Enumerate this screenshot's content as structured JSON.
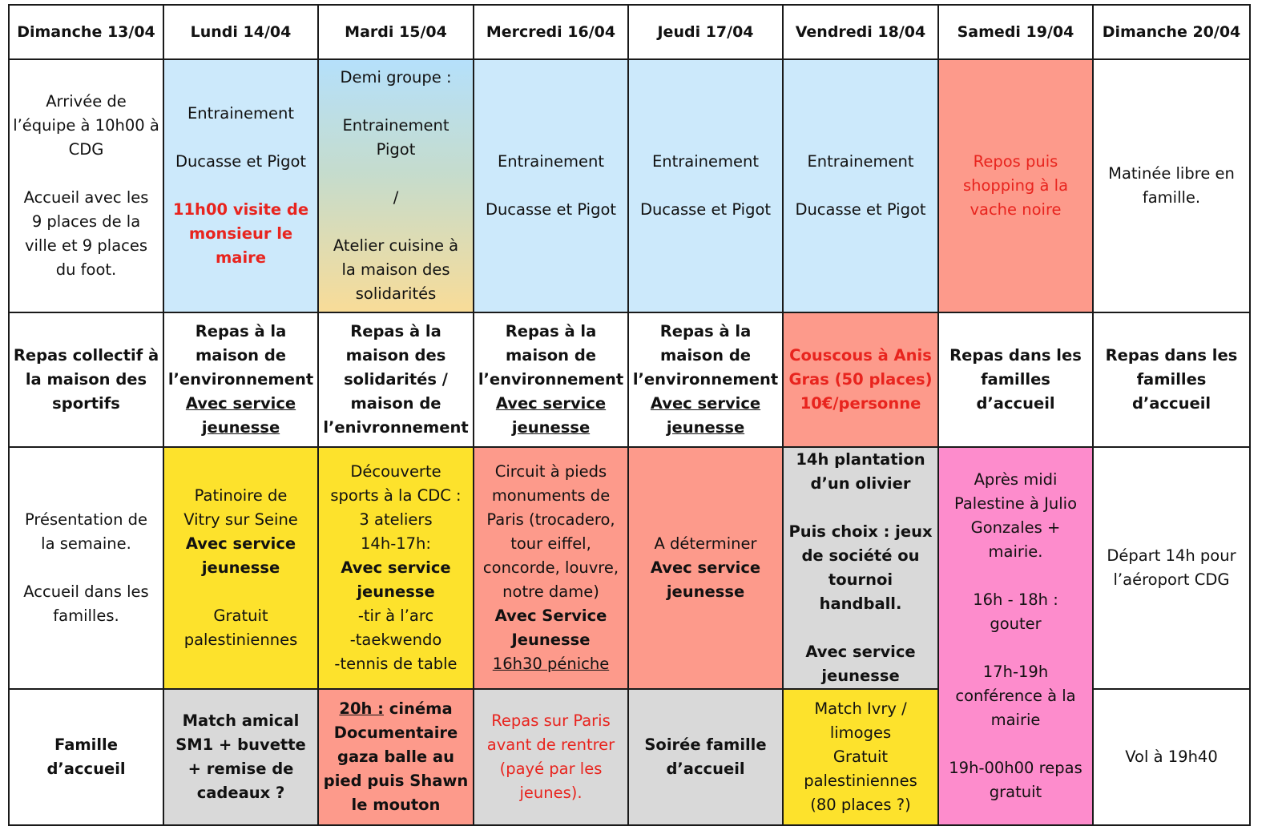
{
  "days": [
    "Dimanche 13/04",
    "Lundi 14/04",
    "Mardi 15/04",
    "Mercredi 16/04",
    "Jeudi 17/04",
    "Vendredi 18/04",
    "Samedi 19/04",
    "Dimanche 20/04"
  ],
  "colors": {
    "blue": "#cce9fb",
    "salmon": "#fd9a8b",
    "yellow": "#fde22c",
    "grey": "#d9d9d9",
    "pink": "#fd8ccc",
    "red_text": "#e8241e",
    "gradient": [
      "#b5e0fb",
      "#f8dc98"
    ]
  },
  "rows": [
    [
      {
        "bg": "",
        "lines": [
          {
            "t": "Arrivée de"
          },
          {
            "t": "l’équipe à 10h00 à"
          },
          {
            "t": "CDG"
          },
          {
            "t": ""
          },
          {
            "t": "Accueil avec les"
          },
          {
            "t": "9 places de la"
          },
          {
            "t": "ville et 9 places"
          },
          {
            "t": "du foot."
          }
        ]
      },
      {
        "bg": "blue",
        "lines": [
          {
            "t": "Entrainement"
          },
          {
            "t": ""
          },
          {
            "t": "Ducasse et Pigot"
          },
          {
            "t": ""
          },
          {
            "t": "11h00 visite de",
            "s": "bold red"
          },
          {
            "t": "monsieur le",
            "s": "bold red"
          },
          {
            "t": "maire",
            "s": "bold red"
          }
        ]
      },
      {
        "bg": "grad",
        "lines": [
          {
            "t": "Demi groupe :"
          },
          {
            "t": ""
          },
          {
            "t": "Entrainement"
          },
          {
            "t": "Pigot"
          },
          {
            "t": ""
          },
          {
            "t": "/"
          },
          {
            "t": ""
          },
          {
            "t": "Atelier cuisine à"
          },
          {
            "t": "la maison des"
          },
          {
            "t": "solidarités"
          }
        ]
      },
      {
        "bg": "blue",
        "lines": [
          {
            "t": "Entrainement"
          },
          {
            "t": ""
          },
          {
            "t": "Ducasse et Pigot"
          }
        ]
      },
      {
        "bg": "blue",
        "lines": [
          {
            "t": "Entrainement"
          },
          {
            "t": ""
          },
          {
            "t": "Ducasse et Pigot"
          }
        ]
      },
      {
        "bg": "blue",
        "lines": [
          {
            "t": "Entrainement"
          },
          {
            "t": ""
          },
          {
            "t": "Ducasse et Pigot"
          }
        ]
      },
      {
        "bg": "salmon",
        "lines": [
          {
            "t": "Repos puis",
            "s": "red"
          },
          {
            "t": "shopping à la",
            "s": "red"
          },
          {
            "t": "vache noire",
            "s": "red"
          }
        ]
      },
      {
        "bg": "",
        "lines": [
          {
            "t": "Matinée libre en"
          },
          {
            "t": "famille."
          }
        ]
      }
    ],
    [
      {
        "bg": "",
        "lines": [
          {
            "t": "Repas collectif à",
            "s": "bold"
          },
          {
            "t": "la maison des",
            "s": "bold"
          },
          {
            "t": "sportifs",
            "s": "bold"
          }
        ]
      },
      {
        "bg": "",
        "lines": [
          {
            "t": "Repas à la",
            "s": "bold"
          },
          {
            "t": "maison de",
            "s": "bold"
          },
          {
            "t": "l’environnement",
            "s": "bold"
          },
          {
            "t": "Avec service",
            "s": "bold ul"
          },
          {
            "t": "jeunesse",
            "s": "bold ul"
          }
        ]
      },
      {
        "bg": "",
        "lines": [
          {
            "t": "Repas à la",
            "s": "bold"
          },
          {
            "t": "maison des",
            "s": "bold"
          },
          {
            "t": "solidarités /",
            "s": "bold"
          },
          {
            "t": "maison de",
            "s": "bold"
          },
          {
            "t": "l’enivronnement",
            "s": "bold"
          }
        ]
      },
      {
        "bg": "",
        "lines": [
          {
            "t": "Repas à la",
            "s": "bold"
          },
          {
            "t": "maison de",
            "s": "bold"
          },
          {
            "t": "l’environnement",
            "s": "bold"
          },
          {
            "t": "Avec service",
            "s": "bold ul"
          },
          {
            "t": "jeunesse",
            "s": "bold ul"
          }
        ]
      },
      {
        "bg": "",
        "lines": [
          {
            "t": "Repas à la",
            "s": "bold"
          },
          {
            "t": "maison de",
            "s": "bold"
          },
          {
            "t": "l’environnement",
            "s": "bold"
          },
          {
            "t": "Avec service",
            "s": "bold ul"
          },
          {
            "t": "jeunesse",
            "s": "bold ul"
          }
        ]
      },
      {
        "bg": "salmon",
        "lines": [
          {
            "t": "Couscous à Anis",
            "s": "bold red"
          },
          {
            "t": "Gras (50 places)",
            "s": "bold red"
          },
          {
            "t": "10€/personne",
            "s": "bold red"
          }
        ]
      },
      {
        "bg": "",
        "lines": [
          {
            "t": "Repas dans les",
            "s": "bold"
          },
          {
            "t": "familles d’accueil",
            "s": "bold"
          }
        ]
      },
      {
        "bg": "",
        "lines": [
          {
            "t": "Repas dans les",
            "s": "bold"
          },
          {
            "t": "familles d’accueil",
            "s": "bold"
          }
        ]
      }
    ],
    [
      {
        "bg": "",
        "lines": [
          {
            "t": "Présentation de"
          },
          {
            "t": "la semaine."
          },
          {
            "t": ""
          },
          {
            "t": "Accueil dans les"
          },
          {
            "t": "familles."
          }
        ]
      },
      {
        "bg": "yellow",
        "lines": [
          {
            "t": "Patinoire de"
          },
          {
            "t": "Vitry sur Seine"
          },
          {
            "t": "Avec service",
            "s": "bold"
          },
          {
            "t": "jeunesse",
            "s": "bold"
          },
          {
            "t": ""
          },
          {
            "t": "Gratuit"
          },
          {
            "t": "palestiniennes"
          }
        ]
      },
      {
        "bg": "yellow",
        "lines": [
          {
            "t": "Découverte"
          },
          {
            "t": "sports à la CDC :"
          },
          {
            "t": "3 ateliers"
          },
          {
            "t": "14h-17h:"
          },
          {
            "t": "Avec service",
            "s": "bold"
          },
          {
            "t": "jeunesse",
            "s": "bold"
          },
          {
            "t": "-tir à l’arc"
          },
          {
            "t": "-taekwendo"
          },
          {
            "t": "-tennis de table"
          }
        ]
      },
      {
        "bg": "salmon",
        "lines": [
          {
            "t": "Circuit à pieds"
          },
          {
            "t": "monuments de"
          },
          {
            "t": "Paris (trocadero,"
          },
          {
            "t": "tour eiffel,"
          },
          {
            "t": "concorde, louvre,"
          },
          {
            "t": "notre dame)"
          },
          {
            "t": "Avec Service",
            "s": "bold"
          },
          {
            "t": "Jeunesse",
            "s": "bold"
          },
          {
            "t": "16h30 péniche",
            "s": "ul"
          }
        ]
      },
      {
        "bg": "salmon",
        "lines": [
          {
            "t": "A déterminer"
          },
          {
            "t": "Avec service",
            "s": "bold"
          },
          {
            "t": "jeunesse",
            "s": "bold"
          }
        ]
      },
      {
        "bg": "grey",
        "lines": [
          {
            "t": "14h plantation",
            "s": "bold"
          },
          {
            "t": "d’un olivier",
            "s": "bold"
          },
          {
            "t": ""
          },
          {
            "t": "Puis choix : jeux",
            "s": "bold"
          },
          {
            "t": "de société ou",
            "s": "bold"
          },
          {
            "t": "tournoi handball.",
            "s": "bold"
          },
          {
            "t": ""
          },
          {
            "t": "Avec service",
            "s": "bold"
          },
          {
            "t": "jeunesse",
            "s": "bold"
          }
        ]
      },
      {
        "bg": "pink",
        "rowspan": 2,
        "lines": [
          {
            "t": "Après midi"
          },
          {
            "t": "Palestine à Julio"
          },
          {
            "t": "Gonzales +"
          },
          {
            "t": "mairie."
          },
          {
            "t": ""
          },
          {
            "t": "16h - 18h :"
          },
          {
            "t": "gouter"
          },
          {
            "t": ""
          },
          {
            "t": "17h-19h"
          },
          {
            "t": "conférence à la"
          },
          {
            "t": "mairie"
          },
          {
            "t": ""
          },
          {
            "t": "19h-00h00 repas"
          },
          {
            "t": "gratuit"
          }
        ]
      },
      {
        "bg": "",
        "lines": [
          {
            "t": "Départ 14h pour"
          },
          {
            "t": "l’aéroport CDG"
          }
        ]
      }
    ],
    [
      {
        "bg": "",
        "lines": [
          {
            "t": "Famille d’accueil",
            "s": "bold"
          }
        ]
      },
      {
        "bg": "grey",
        "lines": [
          {
            "t": "Match amical",
            "s": "bold"
          },
          {
            "t": "SM1 + buvette",
            "s": "bold"
          },
          {
            "t": "+ remise de",
            "s": "bold"
          },
          {
            "t": "cadeaux ?",
            "s": "bold"
          }
        ]
      },
      {
        "bg": "salmon",
        "lines": [
          {
            "t": "20h : cinéma",
            "s": "bold"
          },
          {
            "t": "Documentaire",
            "s": "bold"
          },
          {
            "t": "gaza balle au",
            "s": "bold"
          },
          {
            "t": "pied puis Shawn",
            "s": "bold"
          },
          {
            "t": "le mouton",
            "s": "bold"
          }
        ]
      },
      {
        "bg": "grey",
        "lines": [
          {
            "t": "Repas sur Paris",
            "s": "red"
          },
          {
            "t": "avant de rentrer",
            "s": "red"
          },
          {
            "t": "(payé par les",
            "s": "red"
          },
          {
            "t": "jeunes).",
            "s": "red"
          }
        ]
      },
      {
        "bg": "grey",
        "lines": [
          {
            "t": "Soirée famille",
            "s": "bold"
          },
          {
            "t": "d’accueil",
            "s": "bold"
          }
        ]
      },
      {
        "bg": "yellow",
        "lines": [
          {
            "t": "Match Ivry /"
          },
          {
            "t": "limoges"
          },
          {
            "t": "Gratuit"
          },
          {
            "t": "palestiniennes"
          },
          {
            "t": "(80 places ?)"
          }
        ]
      },
      {
        "bg": "",
        "lines": [
          {
            "t": "Vol à 19h40"
          }
        ]
      }
    ]
  ]
}
